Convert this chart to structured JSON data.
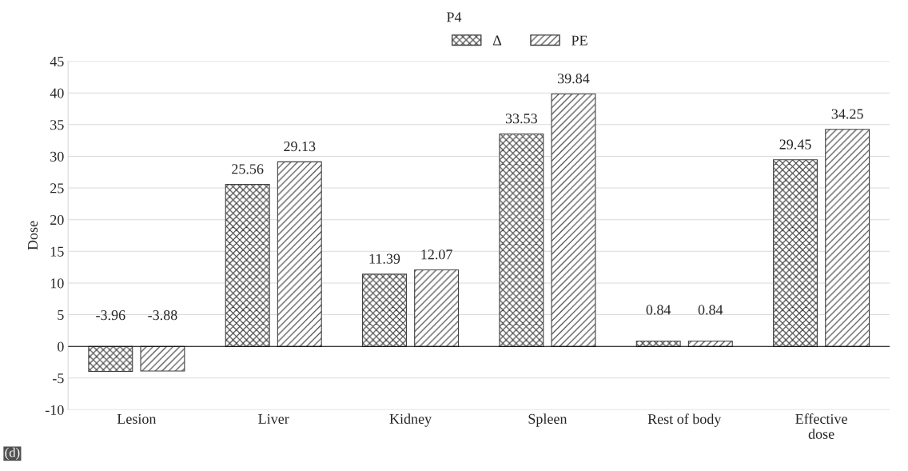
{
  "chart_data": {
    "type": "bar",
    "title": "P4",
    "ylabel": "Dose",
    "categories": [
      "Lesion",
      "Liver",
      "Kidney",
      "Spleen",
      "Rest of body",
      "Effective\ndose"
    ],
    "series": [
      {
        "name": "Δ",
        "color": "#404040",
        "values": [
          -3.96,
          25.56,
          11.39,
          33.53,
          0.84,
          29.45
        ]
      },
      {
        "name": "PE",
        "color": "#404040",
        "values": [
          -3.88,
          29.13,
          12.07,
          39.84,
          0.84,
          34.25
        ]
      }
    ],
    "ylim": [
      -10,
      45
    ],
    "yticks": [
      -10,
      -5,
      0,
      5,
      10,
      15,
      20,
      25,
      30,
      35,
      40,
      45
    ],
    "grid": "y",
    "legend": "top",
    "data_labels": true,
    "annotations": [
      "(d)"
    ]
  }
}
